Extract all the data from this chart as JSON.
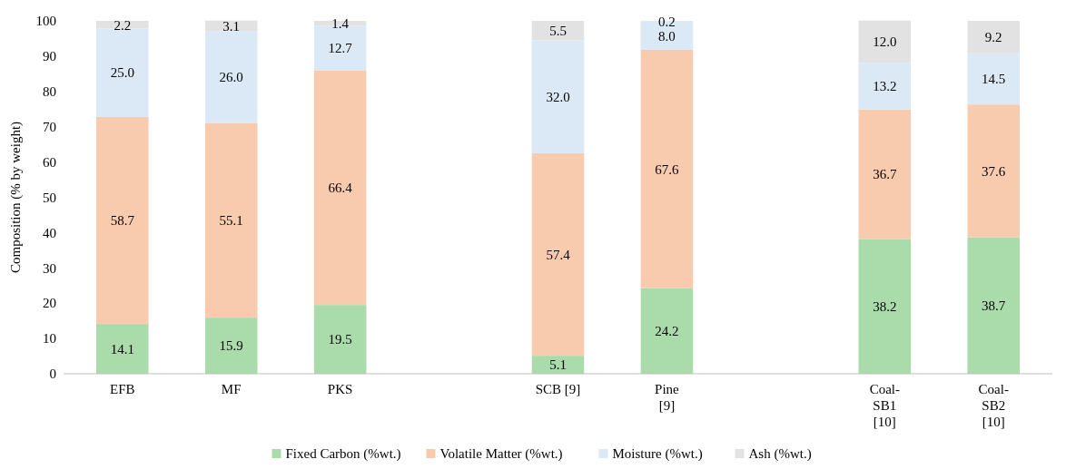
{
  "chart_data": {
    "type": "bar",
    "stacked": true,
    "ylabel": "Composition (% by weight)",
    "categories": [
      "EFB",
      "MF",
      "PKS",
      null,
      "SCB [9]",
      "Pine [9]",
      null,
      "Coal-SB1 [10]",
      "Coal-SB2 [10]"
    ],
    "series": [
      {
        "name": "Fixed Carbon (%wt.)",
        "color": "#a9dcaa",
        "values": [
          14.1,
          15.9,
          19.5,
          null,
          5.1,
          24.2,
          null,
          38.2,
          38.7
        ],
        "value_labels": [
          "14.1",
          "15.9",
          "19.5",
          null,
          "5.1",
          "24.2",
          null,
          "38.2",
          "38.7"
        ]
      },
      {
        "name": "Volatile Matter (%wt.)",
        "color": "#f9cbae",
        "values": [
          58.7,
          55.1,
          66.4,
          null,
          57.4,
          67.6,
          null,
          36.7,
          37.6
        ],
        "value_labels": [
          "58.7",
          "55.1",
          "66.4",
          null,
          "57.4",
          "67.6",
          null,
          "36.7",
          "37.6"
        ]
      },
      {
        "name": "Moisture (%wt.)",
        "color": "#dbe8f6",
        "values": [
          25.0,
          26.0,
          12.7,
          null,
          32.0,
          8.0,
          null,
          13.2,
          14.5
        ],
        "value_labels": [
          "25.0",
          "26.0",
          "12.7",
          null,
          "32.0",
          "8.0",
          null,
          "13.2",
          "14.5"
        ]
      },
      {
        "name": "Ash (%wt.)",
        "color": "#e2e2e2",
        "values": [
          2.2,
          3.1,
          1.4,
          null,
          5.5,
          0.2,
          null,
          12.0,
          9.2
        ],
        "value_labels": [
          "2.2",
          "3.1",
          "1.4",
          null,
          "5.5",
          "0.2",
          null,
          "12.0",
          "9.2"
        ]
      }
    ],
    "ylim": [
      0,
      100
    ],
    "yticks": [
      0,
      10,
      20,
      30,
      40,
      50,
      60,
      70,
      80,
      90,
      100
    ],
    "legend": "bottom",
    "grid": false
  }
}
